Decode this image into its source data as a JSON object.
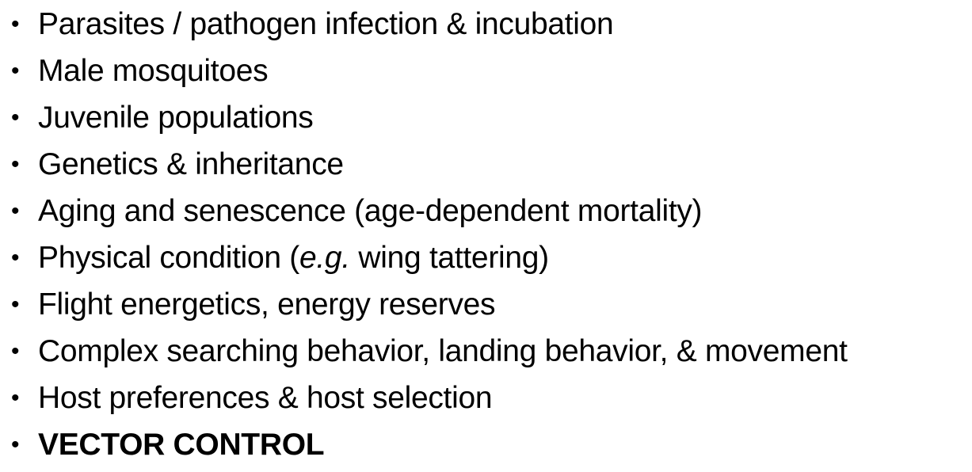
{
  "bullet_glyph": "•",
  "items": [
    {
      "text": "Parasites / pathogen infection & incubation"
    },
    {
      "text": "Male mosquitoes"
    },
    {
      "text": "Juvenile populations"
    },
    {
      "text": "Genetics & inheritance"
    },
    {
      "text": "Aging and senescence (age-dependent mortality)"
    },
    {
      "pre": "Physical condition (",
      "italic": "e.g.",
      "post": " wing tattering)"
    },
    {
      "text": "Flight energetics, energy reserves"
    },
    {
      "text": "Complex searching behavior, landing behavior, & movement"
    },
    {
      "text": "Host preferences & host selection"
    },
    {
      "text": "VECTOR CONTROL"
    }
  ]
}
